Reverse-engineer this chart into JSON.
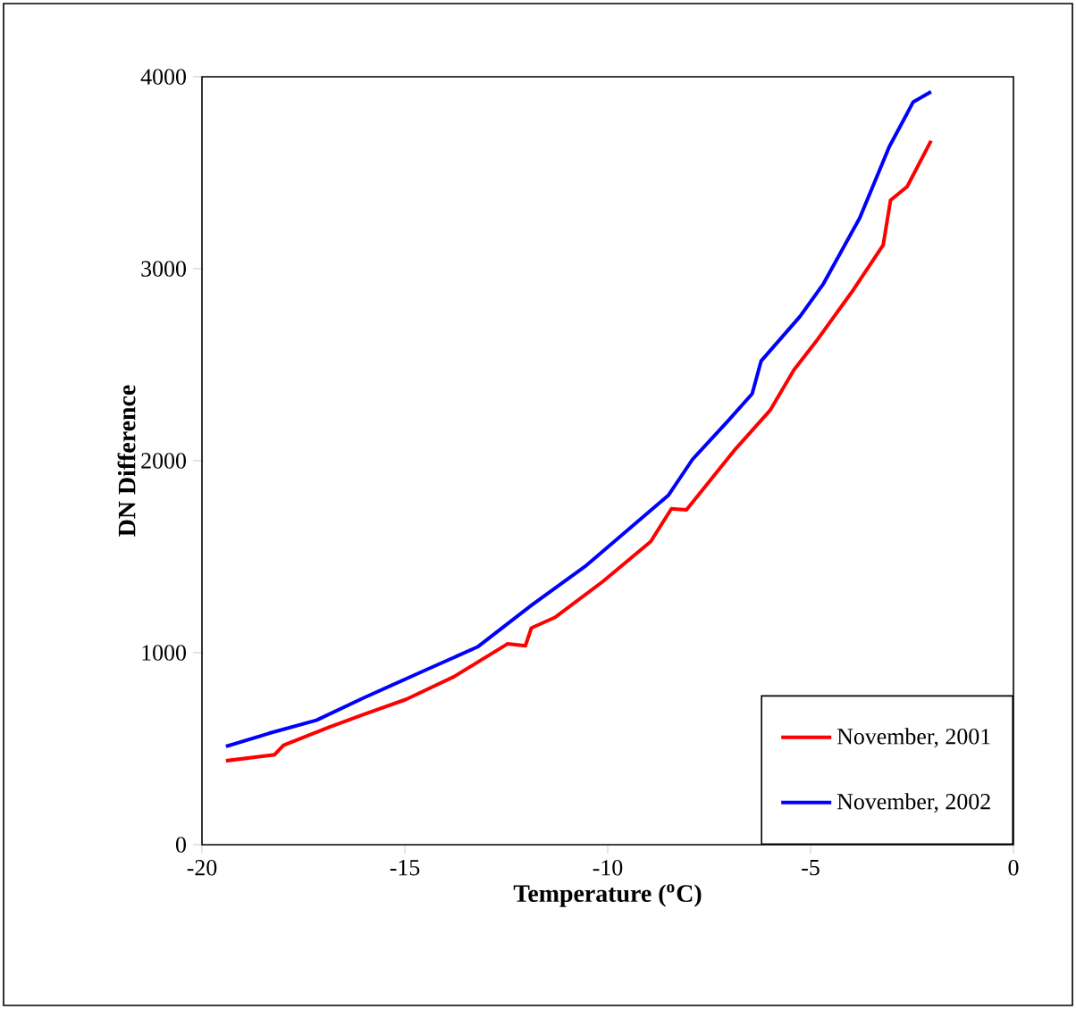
{
  "chart_data": {
    "type": "line",
    "xlabel": "Temperature ($^{o}$C)",
    "ylabel": "DN Difference",
    "xlim": [
      -20,
      0
    ],
    "xticks": [
      -20,
      -15,
      -10,
      -5,
      0
    ],
    "ylim": [
      0,
      4000
    ],
    "yticks": [
      0,
      1000,
      2000,
      3000,
      4000
    ],
    "grid": false,
    "legend": "bottom right",
    "marker": "none",
    "line_style": "solid",
    "series": [
      {
        "name": "November, 2001",
        "color": "#ff0000",
        "x": [
          -19.41,
          -18.21,
          -17.99,
          -16.88,
          -16.0,
          -14.97,
          -13.79,
          -12.47,
          -12.03,
          -11.88,
          -11.29,
          -10.12,
          -8.94,
          -8.43,
          -8.06,
          -7.62,
          -6.88,
          -6.0,
          -5.41,
          -4.82,
          -3.94,
          -3.21,
          -3.03,
          -2.62,
          -2.03
        ],
        "values": [
          437,
          469,
          518,
          611,
          680,
          757,
          875,
          1046,
          1036,
          1129,
          1185,
          1371,
          1579,
          1750,
          1744,
          1859,
          2054,
          2262,
          2473,
          2634,
          2892,
          3124,
          3357,
          3428,
          3667
        ]
      },
      {
        "name": "November, 2002",
        "color": "#0000ff",
        "x": [
          -19.41,
          -18.35,
          -17.18,
          -16.0,
          -14.53,
          -13.21,
          -11.88,
          -10.56,
          -9.53,
          -8.5,
          -7.91,
          -7.03,
          -6.44,
          -6.22,
          -5.26,
          -4.68,
          -3.79,
          -3.06,
          -2.47,
          -2.03
        ],
        "values": [
          512,
          580,
          648,
          766,
          906,
          1030,
          1247,
          1449,
          1635,
          1821,
          2007,
          2209,
          2349,
          2519,
          2752,
          2923,
          3264,
          3636,
          3869,
          3922
        ]
      }
    ]
  }
}
